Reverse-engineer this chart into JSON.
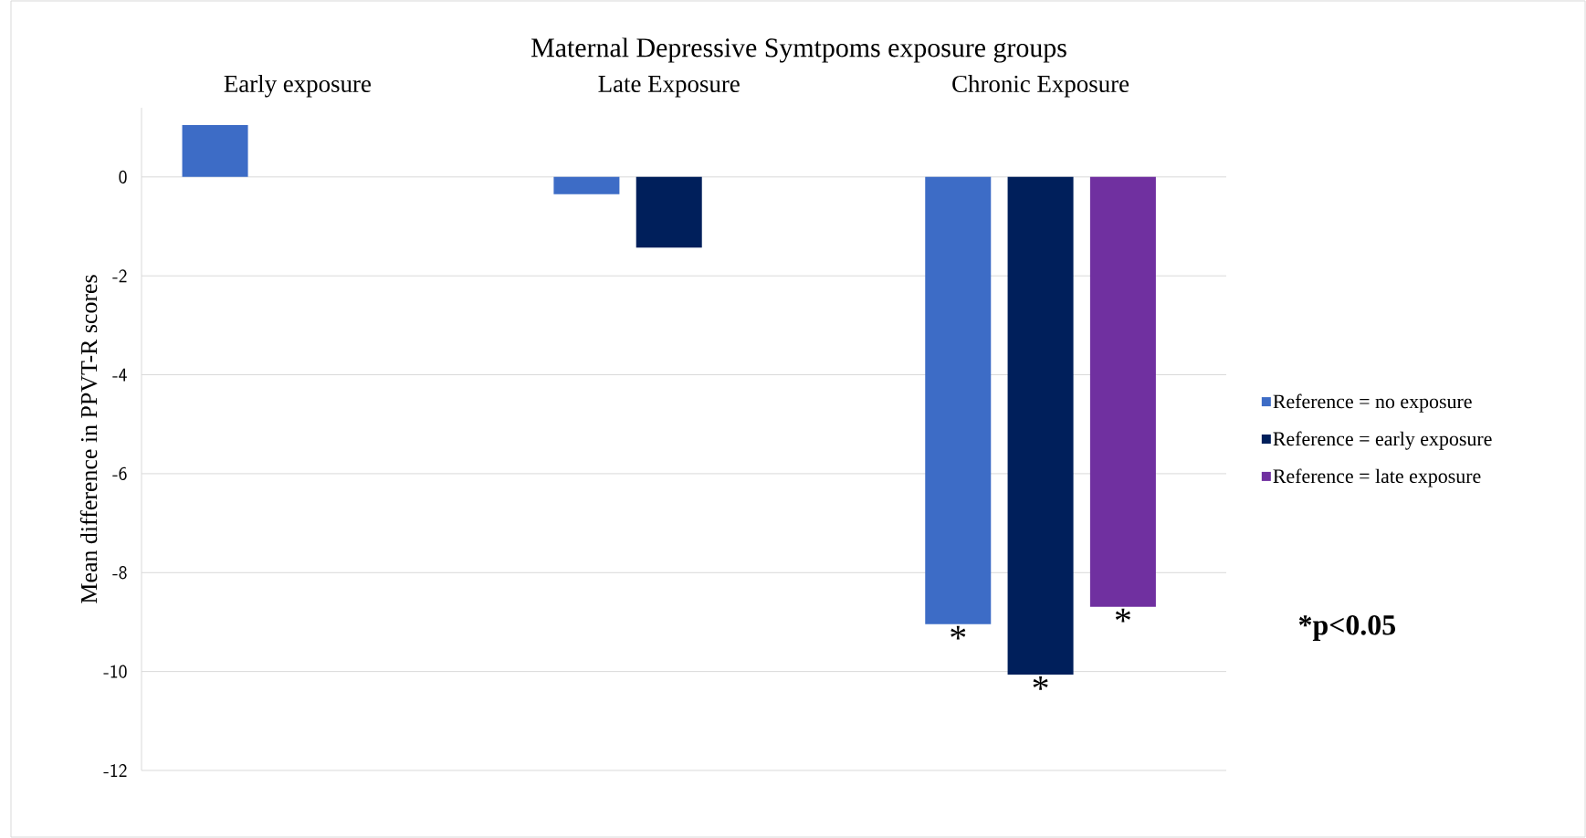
{
  "chart_data": {
    "type": "bar",
    "title": "Maternal Depressive Symtpoms exposure groups",
    "ylabel": "Mean difference in PPVT-R scores",
    "categories": [
      "Early exposure",
      "Late Exposure",
      "Chronic Exposure"
    ],
    "series": [
      {
        "name": "Reference = no exposure",
        "color": "#3d6cc6",
        "values": [
          1.05,
          -0.35,
          -9.04
        ],
        "value_labels": [
          null,
          null,
          "*"
        ]
      },
      {
        "name": "Reference = early exposure",
        "color": "#001f5b",
        "values": [
          null,
          -1.43,
          -10.06
        ],
        "value_labels": [
          null,
          null,
          "*"
        ]
      },
      {
        "name": "Reference = late exposure",
        "color": "#7030a0",
        "values": [
          null,
          null,
          -8.69
        ],
        "value_labels": [
          null,
          null,
          "*"
        ]
      }
    ],
    "ylim": [
      -12,
      1.4
    ],
    "yticks": [
      0,
      -2,
      -4,
      -6,
      -8,
      -10,
      -12
    ],
    "grid": "y",
    "legend": "right",
    "annotations": [
      "*p<0.05"
    ]
  }
}
